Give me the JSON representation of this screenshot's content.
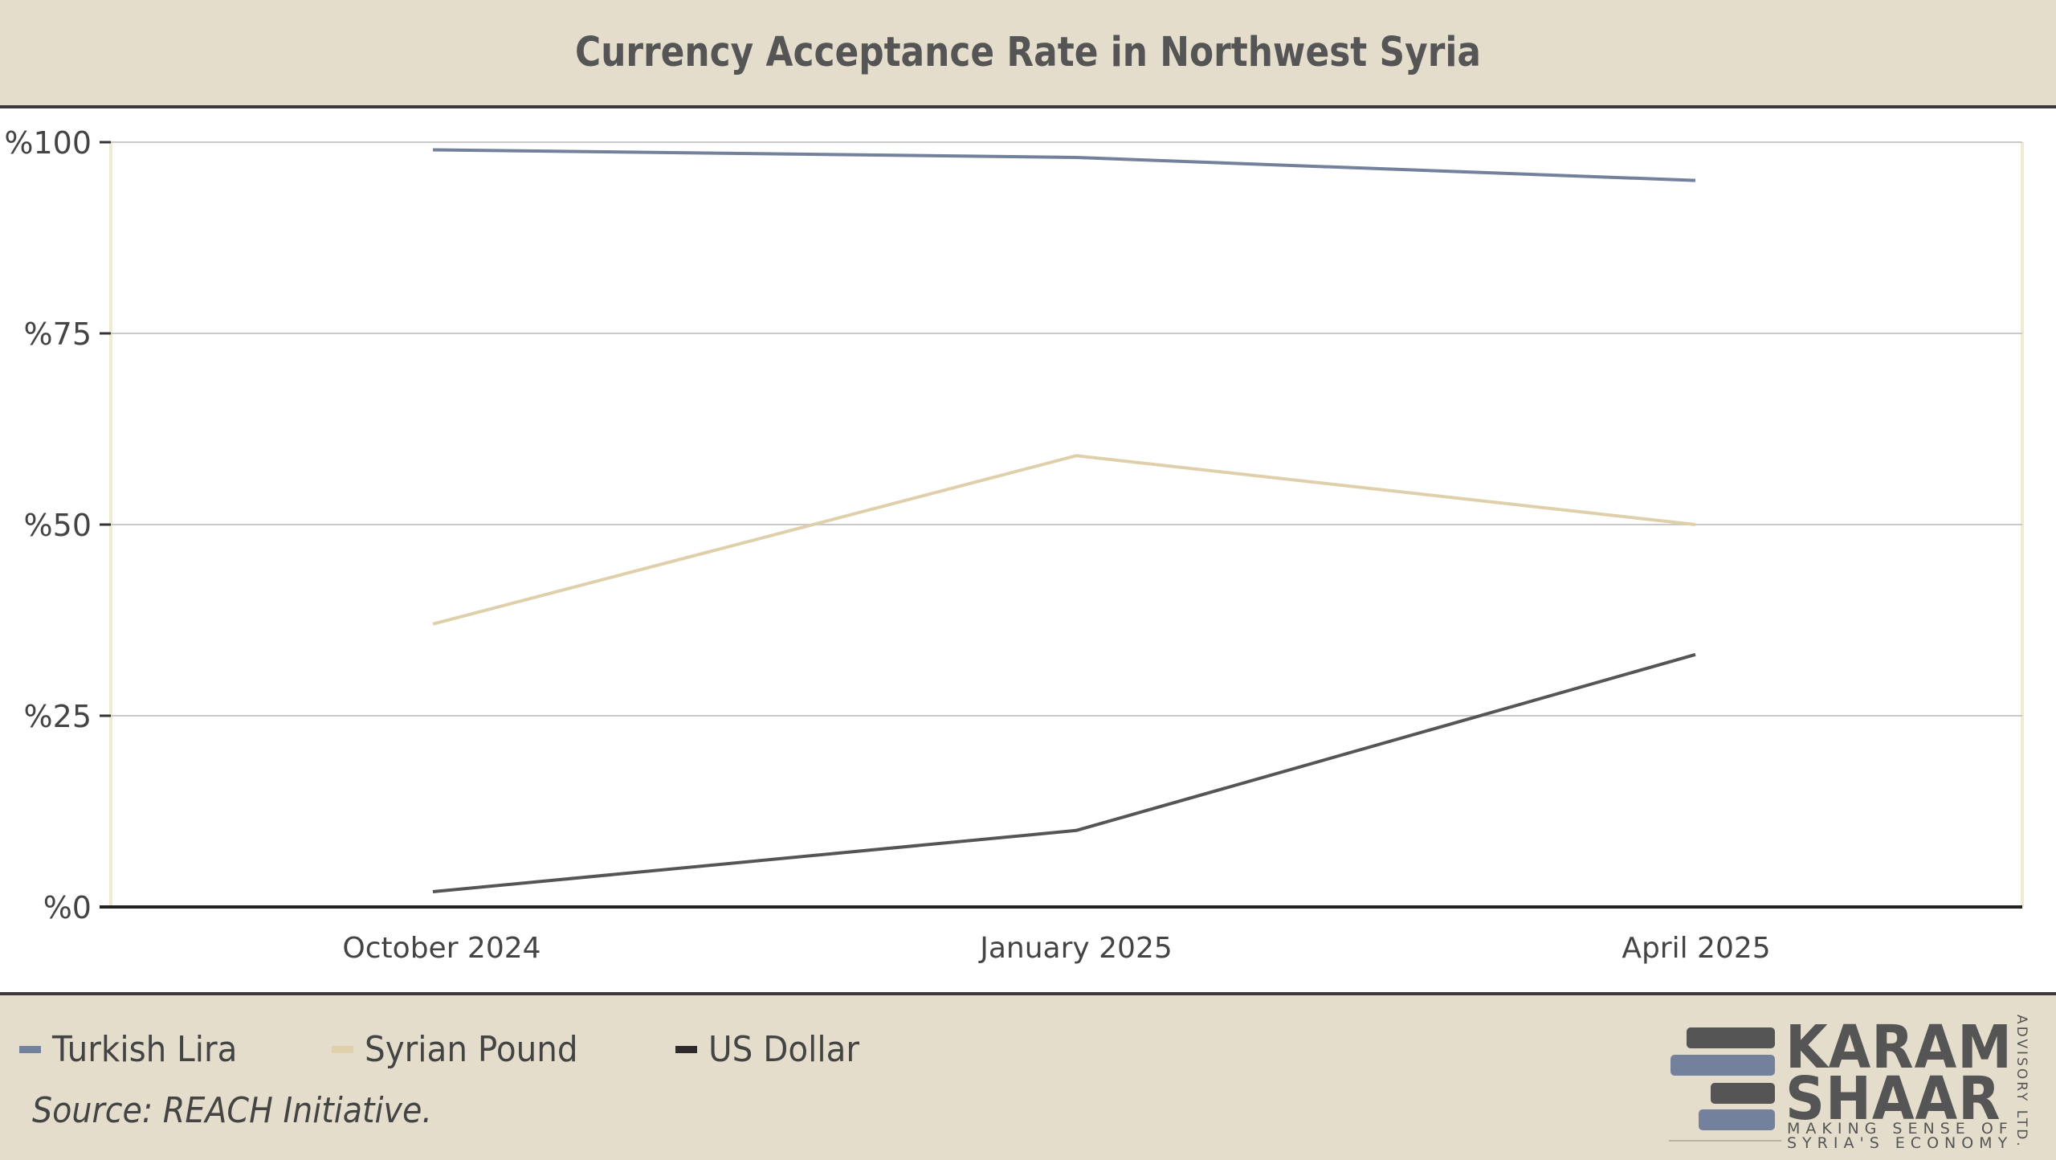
{
  "chart_data": {
    "type": "line",
    "title": "Currency Acceptance Rate in Northwest Syria",
    "categories": [
      "October 2024",
      "January 2025",
      "April 2025"
    ],
    "y_tick_labels": [
      "%0",
      "%25",
      "%50",
      "%75",
      "%100"
    ],
    "y_ticks": [
      0,
      25,
      50,
      75,
      100
    ],
    "ylim": [
      0,
      100
    ],
    "grid": true,
    "legend_position": "bottom-left",
    "series": [
      {
        "name": "Turkish Lira",
        "color": "#73819c",
        "values": [
          99,
          98,
          95
        ]
      },
      {
        "name": "Syrian Pound",
        "color": "#dfd0ab",
        "values": [
          37,
          59,
          50
        ]
      },
      {
        "name": "US Dollar",
        "color": "#555555",
        "values": [
          2,
          10,
          33
        ]
      }
    ],
    "legend_swatch_colors": [
      "#73819c",
      "#dfd0ab",
      "#2e2a2c"
    ]
  },
  "source": "Source: REACH Initiative.",
  "logo": {
    "line1": "KARAM",
    "line2": "SHAAR",
    "tagline1": "MAKING SENSE OF",
    "tagline2": "SYRIA'S ECONOMY",
    "vertical": "ADVISORY LTD.",
    "bar_colors": [
      "#555555",
      "#73819c"
    ]
  }
}
